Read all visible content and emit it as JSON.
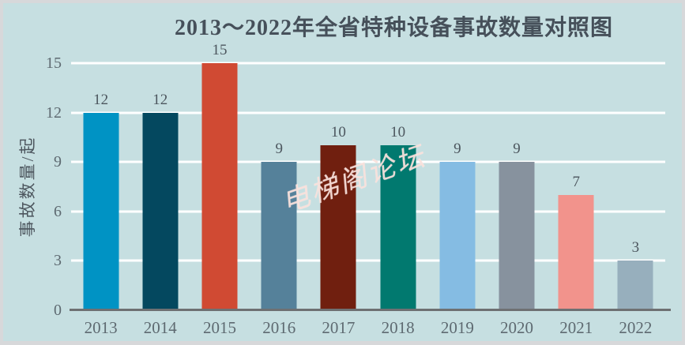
{
  "title": "2013～2022年全省特种设备事故数量对照图",
  "watermark": "电梯阁论坛",
  "chart_data": {
    "type": "bar",
    "title": "2013～2022年全省特种设备事故数量对照图",
    "categories": [
      "2013",
      "2014",
      "2015",
      "2016",
      "2017",
      "2018",
      "2019",
      "2020",
      "2021",
      "2022"
    ],
    "values": [
      12,
      12,
      15,
      9,
      10,
      10,
      9,
      9,
      7,
      3
    ],
    "xlabel": "",
    "ylabel": "事故数量/起",
    "ylim": [
      0,
      15
    ],
    "yticks": [
      0,
      3,
      6,
      9,
      12,
      15
    ],
    "grid": true,
    "legend": "none",
    "bar_colors": [
      "#0093c4",
      "#04485f",
      "#d04a33",
      "#55819a",
      "#701f0f",
      "#01796f",
      "#85bce3",
      "#87929e",
      "#f2938c",
      "#97afbd"
    ],
    "colors": {
      "background": "#c6dfe1",
      "frame_border": "#d7d8da",
      "gridline": "#ffffff",
      "axis_line": "#6e7072",
      "title_text": "#46505a",
      "tick_text": "#5e6a71",
      "value_text": "#4c565e",
      "watermark_text": "#f9dfd9"
    }
  }
}
